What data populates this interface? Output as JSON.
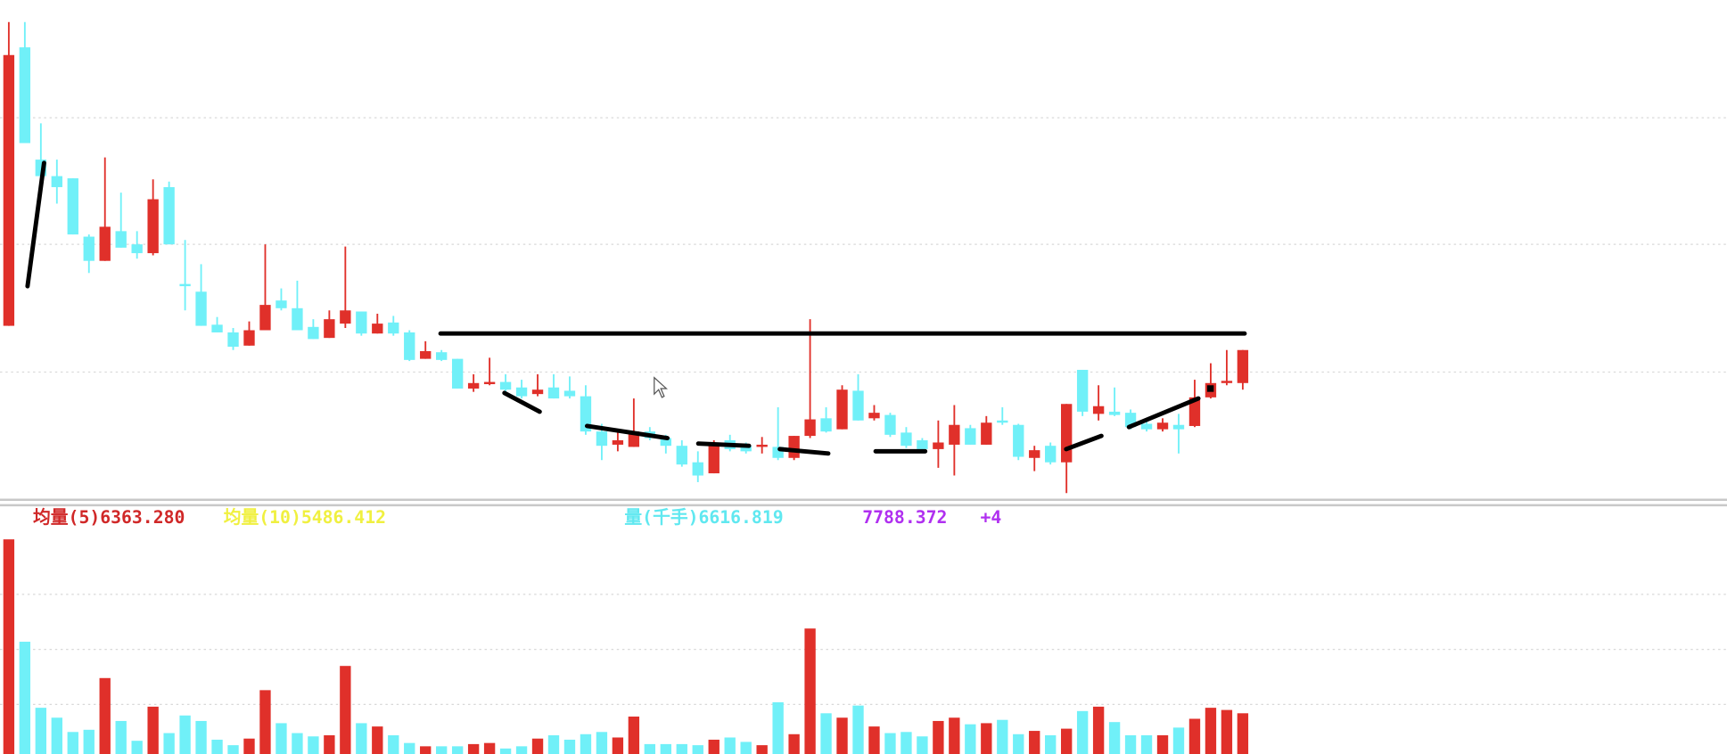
{
  "chart_data": {
    "type": "candlestick",
    "up_color": "#e0302a",
    "down_color": "#70f0f8",
    "ylim": [
      0,
      450
    ],
    "open": [
      154,
      407,
      305,
      290,
      288,
      235,
      213,
      240,
      228,
      220,
      280,
      192,
      185,
      155,
      148,
      136,
      150,
      177,
      170,
      153,
      143,
      156,
      167,
      147,
      157,
      148,
      124,
      130,
      124,
      97,
      101,
      103,
      98,
      92,
      98,
      95,
      90,
      58,
      46,
      44,
      58,
      52,
      45,
      30,
      20,
      50,
      45,
      44,
      44,
      34,
      54,
      70,
      60,
      95,
      70,
      73,
      57,
      50,
      42,
      46,
      61,
      46,
      68,
      64,
      34,
      45,
      30,
      114,
      74,
      76,
      75,
      65,
      60,
      64,
      63,
      89,
      102,
      102
    ],
    "high": [
      430,
      430,
      338,
      305,
      288,
      237,
      307,
      275,
      240,
      287,
      285,
      232,
      210,
      162,
      152,
      158,
      228,
      188,
      195,
      160,
      168,
      226,
      167,
      165,
      163,
      150,
      140,
      132,
      124,
      110,
      125,
      110,
      105,
      110,
      110,
      108,
      100,
      65,
      60,
      88,
      62,
      55,
      50,
      40,
      50,
      55,
      48,
      53,
      80,
      54,
      160,
      80,
      100,
      110,
      82,
      75,
      62,
      52,
      68,
      82,
      64,
      72,
      80,
      65,
      45,
      48,
      83,
      114,
      100,
      98,
      78,
      70,
      70,
      74,
      105,
      120,
      132,
      132
    ],
    "low": [
      154,
      320,
      280,
      265,
      237,
      202,
      213,
      225,
      215,
      218,
      228,
      168,
      154,
      148,
      132,
      136,
      150,
      168,
      150,
      142,
      143,
      152,
      145,
      147,
      145,
      122,
      124,
      122,
      97,
      94,
      100,
      94,
      88,
      90,
      88,
      88,
      55,
      32,
      40,
      44,
      50,
      38,
      26,
      12,
      20,
      40,
      38,
      38,
      32,
      32,
      52,
      57,
      60,
      68,
      68,
      53,
      43,
      40,
      25,
      18,
      46,
      46,
      64,
      32,
      22,
      28,
      2,
      72,
      68,
      72,
      60,
      58,
      58,
      38,
      62,
      88,
      100,
      96
    ],
    "close": [
      400,
      320,
      290,
      280,
      237,
      213,
      244,
      225,
      220,
      269,
      228,
      190,
      154,
      148,
      135,
      150,
      173,
      170,
      150,
      142,
      160,
      168,
      147,
      156,
      147,
      123,
      131,
      123,
      97,
      102,
      103,
      96,
      90,
      96,
      88,
      90,
      58,
      45,
      50,
      58,
      52,
      45,
      28,
      18,
      46,
      42,
      40,
      46,
      34,
      54,
      69,
      58,
      96,
      68,
      75,
      55,
      45,
      42,
      48,
      64,
      46,
      66,
      66,
      35,
      41,
      30,
      83,
      76,
      81,
      73,
      62,
      60,
      66,
      60,
      89,
      102,
      104,
      132
    ],
    "volume": [
      195,
      102,
      42,
      33,
      20,
      22,
      69,
      30,
      12,
      43,
      19,
      35,
      30,
      13,
      8,
      14,
      58,
      28,
      19,
      16,
      17,
      80,
      28,
      25,
      17,
      10,
      7,
      7,
      7,
      9,
      10,
      5,
      7,
      14,
      17,
      13,
      18,
      20,
      15,
      34,
      9,
      9,
      9,
      8,
      13,
      15,
      11,
      8,
      47,
      18,
      114,
      37,
      33,
      44,
      25,
      19,
      20,
      16,
      30,
      33,
      27,
      28,
      31,
      18,
      21,
      17,
      23,
      39,
      43,
      29,
      17,
      17,
      17,
      24,
      32,
      42,
      40,
      37
    ],
    "volume_ylim": [
      0,
      200
    ],
    "volume_legend": [
      {
        "text": "均量(5)6363.280",
        "color": "#d02828"
      },
      {
        "text": "均量(10)5486.412",
        "color": "#f0f040"
      },
      {
        "text": "量(千手)6616.819",
        "color": "#60e8f0"
      },
      {
        "text": "7788.372",
        "color": "#b030f0"
      },
      {
        "text": "+4",
        "color": "#b030f0"
      }
    ]
  }
}
